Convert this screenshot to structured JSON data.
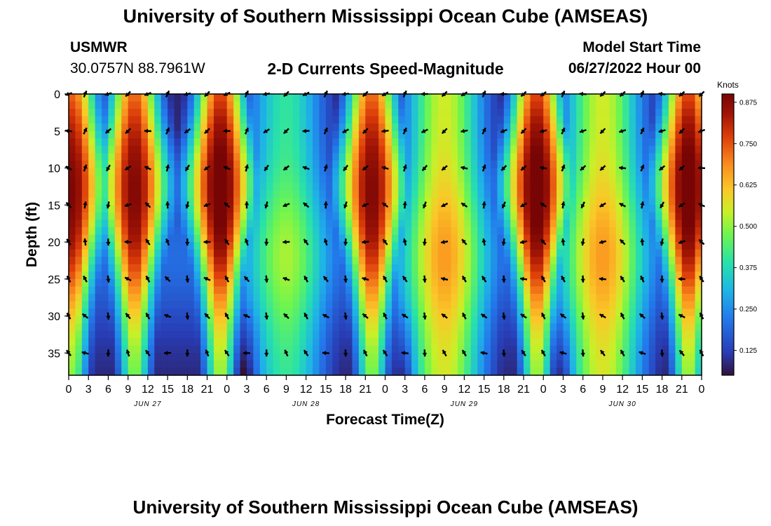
{
  "header": {
    "title": "University of Southern Mississippi Ocean Cube (AMSEAS)",
    "station_name": "USMWR",
    "coordinates": "30.0757N  88.7961W",
    "plot_title": "2-D Currents Speed-Magnitude",
    "model_start_label": "Model Start Time",
    "model_start_value": "06/27/2022 Hour 00"
  },
  "footer": {
    "title": "University of Southern Mississippi Ocean Cube (AMSEAS)"
  },
  "chart_data": {
    "type": "heatmap",
    "title": "2-D Currents Speed-Magnitude",
    "xlabel": "Forecast Time(Z)",
    "ylabel": "Depth (ft)",
    "xlim": [
      0,
      96
    ],
    "ylim": [
      0,
      38
    ],
    "x_ticks": [
      0,
      3,
      6,
      9,
      12,
      15,
      18,
      21,
      24,
      27,
      30,
      33,
      36,
      39,
      42,
      45,
      48,
      51,
      54,
      57,
      60,
      63,
      66,
      69,
      72,
      75,
      78,
      81,
      84,
      87,
      90,
      93,
      96
    ],
    "x_tick_labels": [
      "0",
      "3",
      "6",
      "9",
      "12",
      "15",
      "18",
      "21",
      "0",
      "3",
      "6",
      "9",
      "12",
      "15",
      "18",
      "21",
      "0",
      "3",
      "6",
      "9",
      "12",
      "15",
      "18",
      "21",
      "0",
      "3",
      "6",
      "9",
      "12",
      "15",
      "18",
      "21",
      "0"
    ],
    "date_labels": [
      {
        "x": 12,
        "label": "JUN 27"
      },
      {
        "x": 36,
        "label": "JUN 28"
      },
      {
        "x": 60,
        "label": "JUN 29"
      },
      {
        "x": 84,
        "label": "JUN 30"
      }
    ],
    "y_ticks": [
      0,
      5,
      10,
      15,
      20,
      25,
      30,
      35
    ],
    "colorbar": {
      "title": "Knots",
      "min": 0.05,
      "max": 0.9,
      "ticks": [
        0.125,
        0.25,
        0.375,
        0.5,
        0.625,
        0.75,
        0.875
      ],
      "tick_labels": [
        "0.125",
        "0.250",
        "0.375",
        "0.500",
        "0.625",
        "0.750",
        "0.875"
      ]
    },
    "speed_peaks_knots": [
      {
        "time_hr": 0.5,
        "speed": 0.85
      },
      {
        "time_hr": 10,
        "speed": 0.85
      },
      {
        "time_hr": 23,
        "speed": 0.9
      },
      {
        "time_hr": 33,
        "speed": 0.4
      },
      {
        "time_hr": 46,
        "speed": 0.85
      },
      {
        "time_hr": 57,
        "speed": 0.55
      },
      {
        "time_hr": 71,
        "speed": 0.9
      },
      {
        "time_hr": 81,
        "speed": 0.55
      },
      {
        "time_hr": 94,
        "speed": 0.9
      }
    ],
    "vector_times_hr": [
      0,
      2.5,
      6,
      9,
      12,
      15,
      18,
      21,
      24,
      27,
      30,
      33,
      36,
      39,
      42,
      45,
      48,
      51,
      54,
      57,
      60,
      63,
      66,
      69,
      72,
      75,
      78,
      81,
      84,
      87,
      90,
      93,
      96
    ],
    "vector_depths_ft": [
      0,
      5,
      10,
      15,
      20,
      25,
      30,
      35
    ]
  }
}
